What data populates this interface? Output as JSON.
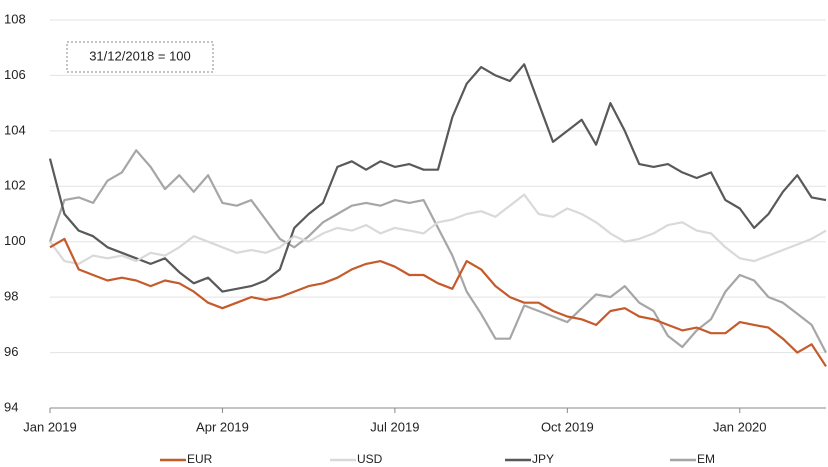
{
  "chart_data": {
    "type": "line",
    "annotation": "31/12/2018 = 100",
    "x": [
      0,
      0.25,
      0.5,
      0.75,
      1,
      1.25,
      1.5,
      1.75,
      2,
      2.25,
      2.5,
      2.75,
      3,
      3.25,
      3.5,
      3.75,
      4,
      4.25,
      4.5,
      4.75,
      5,
      5.25,
      5.5,
      5.75,
      6,
      6.25,
      6.5,
      6.75,
      7,
      7.25,
      7.5,
      7.75,
      8,
      8.25,
      8.5,
      8.75,
      9,
      9.25,
      9.5,
      9.75,
      10,
      10.25,
      10.5,
      10.75,
      11,
      11.25,
      11.5,
      11.75,
      12,
      12.25,
      12.5,
      12.75,
      13,
      13.25,
      13.5
    ],
    "series": [
      {
        "name": "EUR",
        "color": "#c55a2a",
        "values": [
          99.8,
          100.1,
          99.0,
          98.8,
          98.6,
          98.7,
          98.6,
          98.4,
          98.6,
          98.5,
          98.2,
          97.8,
          97.6,
          97.8,
          98.0,
          97.9,
          98.0,
          98.2,
          98.4,
          98.5,
          98.7,
          99.0,
          99.2,
          99.3,
          99.1,
          98.8,
          98.8,
          98.5,
          98.3,
          99.3,
          99.0,
          98.4,
          98.0,
          97.8,
          97.8,
          97.5,
          97.3,
          97.2,
          97.0,
          97.5,
          97.6,
          97.3,
          97.2,
          97.0,
          96.8,
          96.9,
          96.7,
          96.7,
          97.1,
          97.0,
          96.9,
          96.5,
          96.0,
          96.3,
          95.5
        ]
      },
      {
        "name": "USD",
        "color": "#d9d9d9",
        "values": [
          100.0,
          99.3,
          99.2,
          99.5,
          99.4,
          99.5,
          99.3,
          99.6,
          99.5,
          99.8,
          100.2,
          100.0,
          99.8,
          99.6,
          99.7,
          99.6,
          99.8,
          100.2,
          100.0,
          100.3,
          100.5,
          100.4,
          100.6,
          100.3,
          100.5,
          100.4,
          100.3,
          100.7,
          100.8,
          101.0,
          101.1,
          100.9,
          101.3,
          101.7,
          101.0,
          100.9,
          101.2,
          101.0,
          100.7,
          100.3,
          100.0,
          100.1,
          100.3,
          100.6,
          100.7,
          100.4,
          100.3,
          99.8,
          99.4,
          99.3,
          99.5,
          99.7,
          99.9,
          100.1,
          100.4
        ]
      },
      {
        "name": "JPY",
        "color": "#595959",
        "values": [
          103.0,
          101.0,
          100.4,
          100.2,
          99.8,
          99.6,
          99.4,
          99.2,
          99.4,
          98.9,
          98.5,
          98.7,
          98.2,
          98.3,
          98.4,
          98.6,
          99.0,
          100.5,
          101.0,
          101.4,
          102.7,
          102.9,
          102.6,
          102.9,
          102.7,
          102.8,
          102.6,
          102.6,
          104.5,
          105.7,
          106.3,
          106.0,
          105.8,
          106.4,
          105.0,
          103.6,
          104.0,
          104.4,
          103.5,
          105.0,
          104.0,
          102.8,
          102.7,
          102.8,
          102.5,
          102.3,
          102.5,
          101.5,
          101.2,
          100.5,
          101.0,
          101.8,
          102.4,
          101.6,
          101.5
        ]
      },
      {
        "name": "EM",
        "color": "#a6a6a6",
        "values": [
          100.0,
          101.5,
          101.6,
          101.4,
          102.2,
          102.5,
          103.3,
          102.7,
          101.9,
          102.4,
          101.8,
          102.4,
          101.4,
          101.3,
          101.5,
          100.8,
          100.1,
          99.8,
          100.2,
          100.7,
          101.0,
          101.3,
          101.4,
          101.3,
          101.5,
          101.4,
          101.5,
          100.5,
          99.5,
          98.2,
          97.4,
          96.5,
          96.5,
          97.7,
          97.5,
          97.3,
          97.1,
          97.6,
          98.1,
          98.0,
          98.4,
          97.8,
          97.5,
          96.6,
          96.2,
          96.8,
          97.2,
          98.2,
          98.8,
          98.6,
          98.0,
          97.8,
          97.4,
          97.0,
          96.0
        ]
      }
    ],
    "xlim": [
      0,
      13.5
    ],
    "xticks": [
      {
        "value": 0,
        "label": "Jan 2019"
      },
      {
        "value": 3,
        "label": "Apr 2019"
      },
      {
        "value": 6,
        "label": "Jul 2019"
      },
      {
        "value": 9,
        "label": "Oct 2019"
      },
      {
        "value": 12,
        "label": "Jan 2020"
      }
    ],
    "ylim": [
      94,
      108
    ],
    "yticks": [
      94,
      96,
      98,
      100,
      102,
      104,
      106,
      108
    ],
    "grid": true,
    "legend": "bottom"
  }
}
